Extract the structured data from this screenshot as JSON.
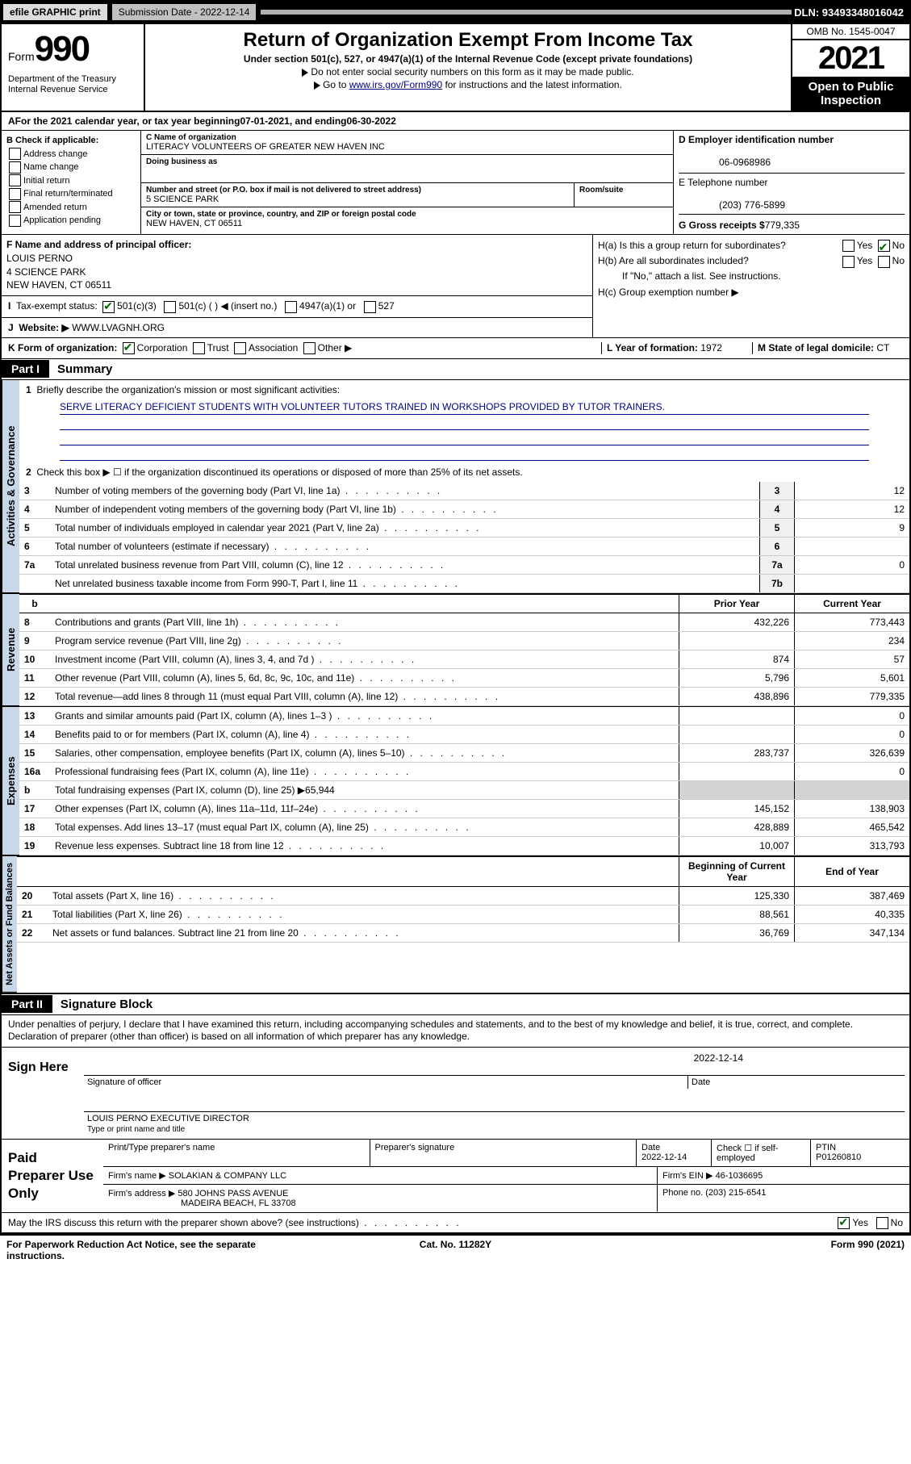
{
  "topbar": {
    "efile": "efile GRAPHIC print",
    "subdate_label": "Submission Date - 2022-12-14",
    "dln": "DLN: 93493348016042"
  },
  "header": {
    "form_word": "Form",
    "form_no": "990",
    "title": "Return of Organization Exempt From Income Tax",
    "sub1": "Under section 501(c), 527, or 4947(a)(1) of the Internal Revenue Code (except private foundations)",
    "sub2": "Do not enter social security numbers on this form as it may be made public.",
    "sub3_pre": "Go to ",
    "sub3_link": "www.irs.gov/Form990",
    "sub3_post": " for instructions and the latest information.",
    "dept": "Department of the Treasury\nInternal Revenue Service",
    "omb": "OMB No. 1545-0047",
    "year": "2021",
    "open": "Open to Public Inspection"
  },
  "period": {
    "label": "For the 2021 calendar year, or tax year beginning ",
    "begin": "07-01-2021",
    "mid": " , and ending ",
    "end": "06-30-2022"
  },
  "boxB": {
    "title": "B Check if applicable:",
    "items": [
      "Address change",
      "Name change",
      "Initial return",
      "Final return/terminated",
      "Amended return",
      "Application pending"
    ]
  },
  "boxC": {
    "name_label": "C Name of organization",
    "name": "LITERACY VOLUNTEERS OF GREATER NEW HAVEN INC",
    "dba_label": "Doing business as",
    "dba": "",
    "street_label": "Number and street (or P.O. box if mail is not delivered to street address)",
    "street": "5 SCIENCE PARK",
    "room_label": "Room/suite",
    "room": "",
    "city_label": "City or town, state or province, country, and ZIP or foreign postal code",
    "city": "NEW HAVEN, CT  06511"
  },
  "boxD": {
    "label": "D Employer identification number",
    "ein": "06-0968986"
  },
  "boxE": {
    "label": "E Telephone number",
    "phone": "(203) 776-5899"
  },
  "boxG": {
    "label": "G Gross receipts $",
    "amount": "779,335"
  },
  "boxF": {
    "label": "F Name and address of principal officer:",
    "name": "LOUIS PERNO",
    "addr1": "4 SCIENCE PARK",
    "addr2": "NEW HAVEN, CT  06511"
  },
  "boxH": {
    "a": "H(a)  Is this a group return for subordinates?",
    "a_yes": "Yes",
    "a_no": "No",
    "b": "H(b)  Are all subordinates included?",
    "b_yes": "Yes",
    "b_no": "No",
    "b_note": "If \"No,\" attach a list. See instructions.",
    "c": "H(c)  Group exemption number ▶"
  },
  "taxstatus": {
    "label": "Tax-exempt status:",
    "o1": "501(c)(3)",
    "o2": "501(c) (  ) ◀ (insert no.)",
    "o3": "4947(a)(1) or",
    "o4": "527"
  },
  "website": {
    "label": "Website: ▶",
    "url": "WWW.LVAGNH.ORG"
  },
  "boxK": {
    "label": "K Form of organization:",
    "o1": "Corporation",
    "o2": "Trust",
    "o3": "Association",
    "o4": "Other ▶"
  },
  "boxL": {
    "label": "L Year of formation:",
    "val": "1972"
  },
  "boxM": {
    "label": "M State of legal domicile:",
    "val": "CT"
  },
  "part1": {
    "hdr": "Part I",
    "title": "Summary",
    "q1": "Briefly describe the organization's mission or most significant activities:",
    "mission": "SERVE LITERACY DEFICIENT STUDENTS WITH VOLUNTEER TUTORS TRAINED IN WORKSHOPS PROVIDED BY TUTOR TRAINERS.",
    "q2": "Check this box ▶ ☐  if the organization discontinued its operations or disposed of more than 25% of its net assets.",
    "lines_ag": [
      {
        "n": "3",
        "t": "Number of voting members of the governing body (Part VI, line 1a)",
        "bx": "3",
        "v": "12"
      },
      {
        "n": "4",
        "t": "Number of independent voting members of the governing body (Part VI, line 1b)",
        "bx": "4",
        "v": "12"
      },
      {
        "n": "5",
        "t": "Total number of individuals employed in calendar year 2021 (Part V, line 2a)",
        "bx": "5",
        "v": "9"
      },
      {
        "n": "6",
        "t": "Total number of volunteers (estimate if necessary)",
        "bx": "6",
        "v": ""
      },
      {
        "n": "7a",
        "t": "Total unrelated business revenue from Part VIII, column (C), line 12",
        "bx": "7a",
        "v": "0"
      },
      {
        "n": "",
        "t": "Net unrelated business taxable income from Form 990-T, Part I, line 11",
        "bx": "7b",
        "v": ""
      }
    ],
    "col_prior": "Prior Year",
    "col_current": "Current Year",
    "col_boy": "Beginning of Current Year",
    "col_eoy": "End of Year",
    "rev": [
      {
        "n": "8",
        "t": "Contributions and grants (Part VIII, line 1h)",
        "p": "432,226",
        "c": "773,443"
      },
      {
        "n": "9",
        "t": "Program service revenue (Part VIII, line 2g)",
        "p": "",
        "c": "234"
      },
      {
        "n": "10",
        "t": "Investment income (Part VIII, column (A), lines 3, 4, and 7d )",
        "p": "874",
        "c": "57"
      },
      {
        "n": "11",
        "t": "Other revenue (Part VIII, column (A), lines 5, 6d, 8c, 9c, 10c, and 11e)",
        "p": "5,796",
        "c": "5,601"
      },
      {
        "n": "12",
        "t": "Total revenue—add lines 8 through 11 (must equal Part VIII, column (A), line 12)",
        "p": "438,896",
        "c": "779,335"
      }
    ],
    "exp": [
      {
        "n": "13",
        "t": "Grants and similar amounts paid (Part IX, column (A), lines 1–3 )",
        "p": "",
        "c": "0"
      },
      {
        "n": "14",
        "t": "Benefits paid to or for members (Part IX, column (A), line 4)",
        "p": "",
        "c": "0"
      },
      {
        "n": "15",
        "t": "Salaries, other compensation, employee benefits (Part IX, column (A), lines 5–10)",
        "p": "283,737",
        "c": "326,639"
      },
      {
        "n": "16a",
        "t": "Professional fundraising fees (Part IX, column (A), line 11e)",
        "p": "",
        "c": "0"
      },
      {
        "n": "b",
        "t": "Total fundraising expenses (Part IX, column (D), line 25) ▶65,944",
        "p": "",
        "c": "",
        "shade": true
      },
      {
        "n": "17",
        "t": "Other expenses (Part IX, column (A), lines 11a–11d, 11f–24e)",
        "p": "145,152",
        "c": "138,903"
      },
      {
        "n": "18",
        "t": "Total expenses. Add lines 13–17 (must equal Part IX, column (A), line 25)",
        "p": "428,889",
        "c": "465,542"
      },
      {
        "n": "19",
        "t": "Revenue less expenses. Subtract line 18 from line 12",
        "p": "10,007",
        "c": "313,793"
      }
    ],
    "net": [
      {
        "n": "20",
        "t": "Total assets (Part X, line 16)",
        "p": "125,330",
        "c": "387,469"
      },
      {
        "n": "21",
        "t": "Total liabilities (Part X, line 26)",
        "p": "88,561",
        "c": "40,335"
      },
      {
        "n": "22",
        "t": "Net assets or fund balances. Subtract line 21 from line 20",
        "p": "36,769",
        "c": "347,134"
      }
    ],
    "tabs": {
      "ag": "Activities & Governance",
      "rev": "Revenue",
      "exp": "Expenses",
      "net": "Net Assets or Fund Balances"
    }
  },
  "part2": {
    "hdr": "Part II",
    "title": "Signature Block",
    "decl": "Under penalties of perjury, I declare that I have examined this return, including accompanying schedules and statements, and to the best of my knowledge and belief, it is true, correct, and complete. Declaration of preparer (other than officer) is based on all information of which preparer has any knowledge.",
    "sign_here": "Sign Here",
    "sig_officer": "Signature of officer",
    "sig_date_label": "Date",
    "sig_date": "2022-12-14",
    "officer_name": "LOUIS PERNO  EXECUTIVE DIRECTOR",
    "officer_label": "Type or print name and title",
    "paid": "Paid Preparer Use Only",
    "prep_name_label": "Print/Type preparer's name",
    "prep_sig_label": "Preparer's signature",
    "prep_date_label": "Date",
    "prep_date": "2022-12-14",
    "prep_check": "Check ☐ if self-employed",
    "ptin_label": "PTIN",
    "ptin": "P01260810",
    "firm_name_label": "Firm's name   ▶",
    "firm_name": "SOLAKIAN & COMPANY LLC",
    "firm_ein_label": "Firm's EIN ▶",
    "firm_ein": "46-1036695",
    "firm_addr_label": "Firm's address ▶",
    "firm_addr1": "580 JOHNS PASS AVENUE",
    "firm_addr2": "MADEIRA BEACH, FL  33708",
    "firm_phone_label": "Phone no.",
    "firm_phone": "(203) 215-6541",
    "discuss": "May the IRS discuss this return with the preparer shown above? (see instructions)",
    "yes": "Yes",
    "no": "No"
  },
  "footer": {
    "pra": "For Paperwork Reduction Act Notice, see the separate instructions.",
    "cat": "Cat. No. 11282Y",
    "form": "Form 990 (2021)"
  }
}
